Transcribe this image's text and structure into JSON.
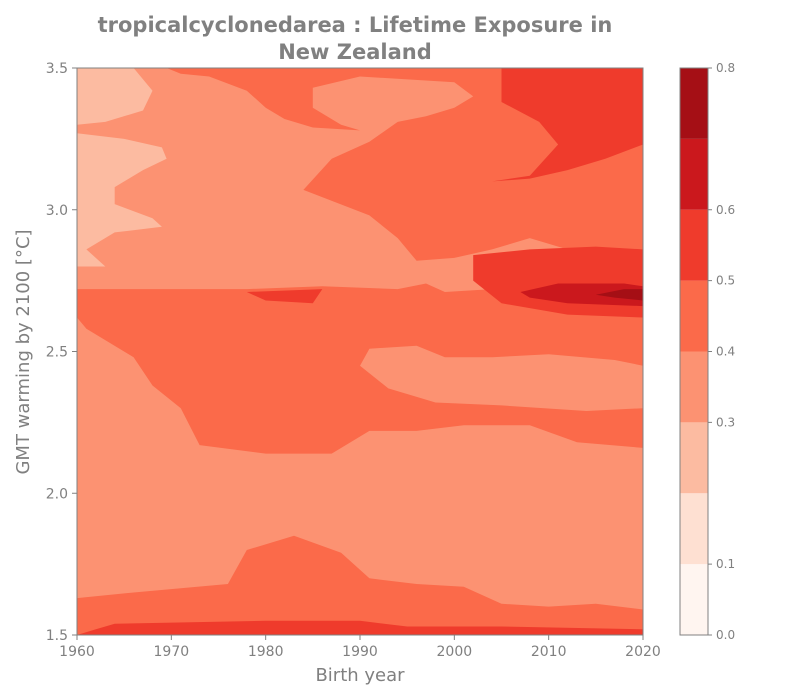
{
  "chart_data": {
    "type": "contour",
    "title": "tropicalcyclonedarea : Lifetime Exposure in\nNew Zealand",
    "xlabel": "Birth year",
    "ylabel": "GMT warming by 2100 [°C]",
    "xlim": [
      1960,
      2020
    ],
    "ylim": [
      1.5,
      3.5
    ],
    "xticks": [
      "1960",
      "1970",
      "1980",
      "1990",
      "2000",
      "2010",
      "2020"
    ],
    "yticks": [
      "1.5",
      "2.0",
      "2.5",
      "3.0",
      "3.5"
    ],
    "colorbar": {
      "levels": [
        0.0,
        0.1,
        0.2,
        0.3,
        0.4,
        0.5,
        0.6,
        0.7,
        0.8
      ],
      "tick_labels": [
        "0.0",
        "0.1",
        "0.3",
        "0.4",
        "0.5",
        "0.6",
        "0.8"
      ],
      "tick_values": [
        0.0,
        0.1,
        0.3,
        0.4,
        0.5,
        0.6,
        0.8
      ],
      "colors": [
        "#fff5f0",
        "#fee0d2",
        "#fcbba1",
        "#fc9272",
        "#fb6a4a",
        "#ef3b2c",
        "#cb181d",
        "#a50f15",
        "#67000d"
      ]
    },
    "background_level": 0.35,
    "regions": [
      {
        "level": 0.25,
        "points": [
          [
            1960,
            3.5
          ],
          [
            1966,
            3.5
          ],
          [
            1968,
            3.42
          ],
          [
            1967,
            3.35
          ],
          [
            1963,
            3.31
          ],
          [
            1960,
            3.3
          ]
        ]
      },
      {
        "level": 0.25,
        "points": [
          [
            1960,
            3.27
          ],
          [
            1965,
            3.25
          ],
          [
            1969,
            3.22
          ],
          [
            1969.5,
            3.18
          ],
          [
            1967,
            3.14
          ],
          [
            1964,
            3.08
          ],
          [
            1964,
            3.02
          ],
          [
            1968,
            2.97
          ],
          [
            1969,
            2.94
          ],
          [
            1964,
            2.92
          ],
          [
            1961,
            2.86
          ],
          [
            1963,
            2.8
          ],
          [
            1960,
            2.8
          ]
        ]
      },
      {
        "level": 0.45,
        "points": [
          [
            1962,
            2.72
          ],
          [
            1978,
            2.72
          ],
          [
            1986,
            2.73
          ],
          [
            1994,
            2.72
          ],
          [
            1997,
            2.74
          ],
          [
            1999,
            2.71
          ],
          [
            2004,
            2.72
          ],
          [
            2010,
            2.74
          ],
          [
            2015,
            2.74
          ],
          [
            2020,
            2.73
          ],
          [
            2020,
            2.45
          ],
          [
            2017,
            2.47
          ],
          [
            2010,
            2.49
          ],
          [
            2004,
            2.48
          ],
          [
            1999,
            2.48
          ],
          [
            1996,
            2.52
          ],
          [
            1991,
            2.51
          ],
          [
            1990,
            2.45
          ],
          [
            1993,
            2.37
          ],
          [
            1998,
            2.32
          ],
          [
            2005,
            2.31
          ],
          [
            2014,
            2.29
          ],
          [
            2020,
            2.3
          ],
          [
            2020,
            2.16
          ],
          [
            2013,
            2.18
          ],
          [
            2008,
            2.24
          ],
          [
            2001,
            2.24
          ],
          [
            1996,
            2.22
          ],
          [
            1991,
            2.22
          ],
          [
            1987,
            2.14
          ],
          [
            1980,
            2.14
          ],
          [
            1973,
            2.17
          ],
          [
            1971,
            2.3
          ],
          [
            1968,
            2.38
          ],
          [
            1966,
            2.48
          ],
          [
            1961,
            2.58
          ],
          [
            1960,
            2.62
          ],
          [
            1960,
            2.72
          ]
        ]
      },
      {
        "level": 0.45,
        "points": [
          [
            1969.5,
            3.5
          ],
          [
            1983,
            3.5
          ],
          [
            1999,
            3.5
          ],
          [
            2020,
            3.5
          ],
          [
            2020,
            2.79
          ],
          [
            2013,
            2.85
          ],
          [
            2008,
            2.9
          ],
          [
            2004,
            2.86
          ],
          [
            2000,
            2.83
          ],
          [
            1996,
            2.82
          ],
          [
            1994,
            2.9
          ],
          [
            1991,
            2.98
          ],
          [
            1984,
            3.07
          ],
          [
            1987,
            3.18
          ],
          [
            1991,
            3.24
          ],
          [
            1994,
            3.31
          ],
          [
            1997,
            3.33
          ],
          [
            2000,
            3.36
          ],
          [
            2002,
            3.4
          ],
          [
            2000,
            3.45
          ],
          [
            1990,
            3.47
          ],
          [
            1985,
            3.43
          ],
          [
            1985,
            3.36
          ],
          [
            1988,
            3.3
          ],
          [
            1990,
            3.28
          ],
          [
            1985,
            3.29
          ],
          [
            1982,
            3.32
          ],
          [
            1980,
            3.36
          ],
          [
            1978,
            3.42
          ],
          [
            1974,
            3.47
          ],
          [
            1971,
            3.48
          ]
        ]
      },
      {
        "level": 0.45,
        "points": [
          [
            1960,
            1.63
          ],
          [
            1966,
            1.65
          ],
          [
            1976,
            1.68
          ],
          [
            1978,
            1.8
          ],
          [
            1983,
            1.85
          ],
          [
            1988,
            1.79
          ],
          [
            1991,
            1.7
          ],
          [
            1996,
            1.68
          ],
          [
            2001,
            1.67
          ],
          [
            2005,
            1.61
          ],
          [
            2010,
            1.6
          ],
          [
            2015,
            1.61
          ],
          [
            2020,
            1.59
          ],
          [
            2020,
            1.5
          ],
          [
            1960,
            1.5
          ]
        ]
      },
      {
        "level": 0.55,
        "points": [
          [
            2005,
            3.5
          ],
          [
            2020,
            3.5
          ],
          [
            2020,
            3.23
          ],
          [
            2016,
            3.18
          ],
          [
            2012,
            3.14
          ],
          [
            2008,
            3.11
          ],
          [
            2004,
            3.1
          ],
          [
            2008,
            3.12
          ],
          [
            2011,
            3.23
          ],
          [
            2009,
            3.31
          ],
          [
            2005,
            3.38
          ],
          [
            2005,
            3.46
          ]
        ]
      },
      {
        "level": 0.55,
        "points": [
          [
            2002,
            2.84
          ],
          [
            2008,
            2.86
          ],
          [
            2015,
            2.87
          ],
          [
            2020,
            2.86
          ],
          [
            2020,
            2.62
          ],
          [
            2012,
            2.63
          ],
          [
            2005,
            2.67
          ],
          [
            2002,
            2.75
          ]
        ]
      },
      {
        "level": 0.55,
        "points": [
          [
            1978,
            2.71
          ],
          [
            1986,
            2.72
          ],
          [
            1985,
            2.67
          ],
          [
            1980,
            2.68
          ]
        ]
      },
      {
        "level": 0.55,
        "points": [
          [
            1964,
            1.54
          ],
          [
            1980,
            1.55
          ],
          [
            1990,
            1.55
          ],
          [
            1995,
            1.53
          ],
          [
            2005,
            1.53
          ],
          [
            2020,
            1.52
          ],
          [
            2020,
            1.5
          ],
          [
            1960,
            1.5
          ],
          [
            1962,
            1.52
          ]
        ]
      },
      {
        "level": 0.65,
        "points": [
          [
            2007,
            2.71
          ],
          [
            2011,
            2.74
          ],
          [
            2018,
            2.74
          ],
          [
            2020,
            2.73
          ],
          [
            2020,
            2.66
          ],
          [
            2012,
            2.67
          ],
          [
            2008,
            2.69
          ]
        ]
      },
      {
        "level": 0.75,
        "points": [
          [
            2015,
            2.7
          ],
          [
            2018,
            2.72
          ],
          [
            2020,
            2.72
          ],
          [
            2020,
            2.68
          ],
          [
            2017,
            2.69
          ]
        ]
      }
    ]
  }
}
